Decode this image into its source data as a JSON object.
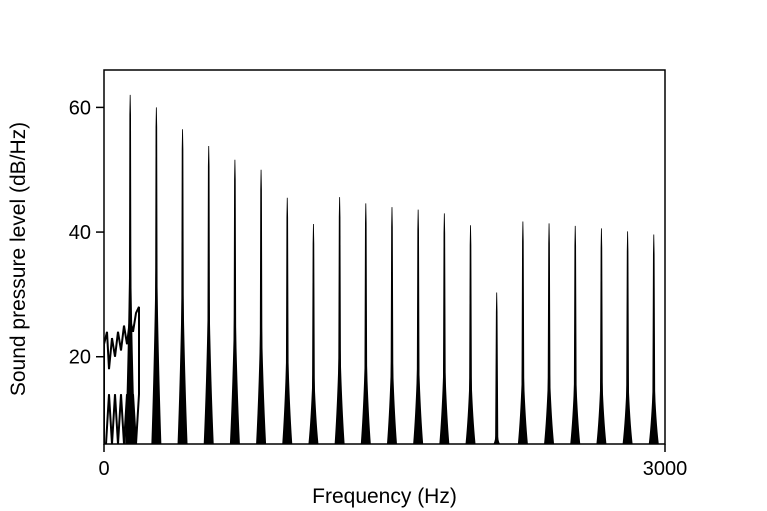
{
  "chart_data": {
    "type": "area",
    "title": "",
    "xlabel": "Frequency (Hz)",
    "ylabel": "Sound pressure level (dB/Hz)",
    "xlim": [
      0,
      3000
    ],
    "ylim": [
      6,
      66
    ],
    "x_ticks": [
      0,
      3000
    ],
    "y_ticks": [
      20,
      40,
      60
    ],
    "grid": false,
    "legend": "none",
    "line_color": "#000000",
    "harmonics": [
      {
        "freq_hz": 140,
        "peak_db": 62
      },
      {
        "freq_hz": 280,
        "peak_db": 60
      },
      {
        "freq_hz": 420,
        "peak_db": 56.5
      },
      {
        "freq_hz": 560,
        "peak_db": 53.8
      },
      {
        "freq_hz": 700,
        "peak_db": 51.6
      },
      {
        "freq_hz": 840,
        "peak_db": 50
      },
      {
        "freq_hz": 980,
        "peak_db": 45.5
      },
      {
        "freq_hz": 1120,
        "peak_db": 41.3
      },
      {
        "freq_hz": 1260,
        "peak_db": 45.6
      },
      {
        "freq_hz": 1400,
        "peak_db": 44.6
      },
      {
        "freq_hz": 1540,
        "peak_db": 44
      },
      {
        "freq_hz": 1680,
        "peak_db": 43.6
      },
      {
        "freq_hz": 1820,
        "peak_db": 43
      },
      {
        "freq_hz": 1960,
        "peak_db": 41.1
      },
      {
        "freq_hz": 2100,
        "peak_db": 30.3
      },
      {
        "freq_hz": 2240,
        "peak_db": 41.7
      },
      {
        "freq_hz": 2380,
        "peak_db": 41.4
      },
      {
        "freq_hz": 2520,
        "peak_db": 41
      },
      {
        "freq_hz": 2660,
        "peak_db": 40.6
      },
      {
        "freq_hz": 2800,
        "peak_db": 40.1
      },
      {
        "freq_hz": 2940,
        "peak_db": 39.6
      }
    ]
  }
}
